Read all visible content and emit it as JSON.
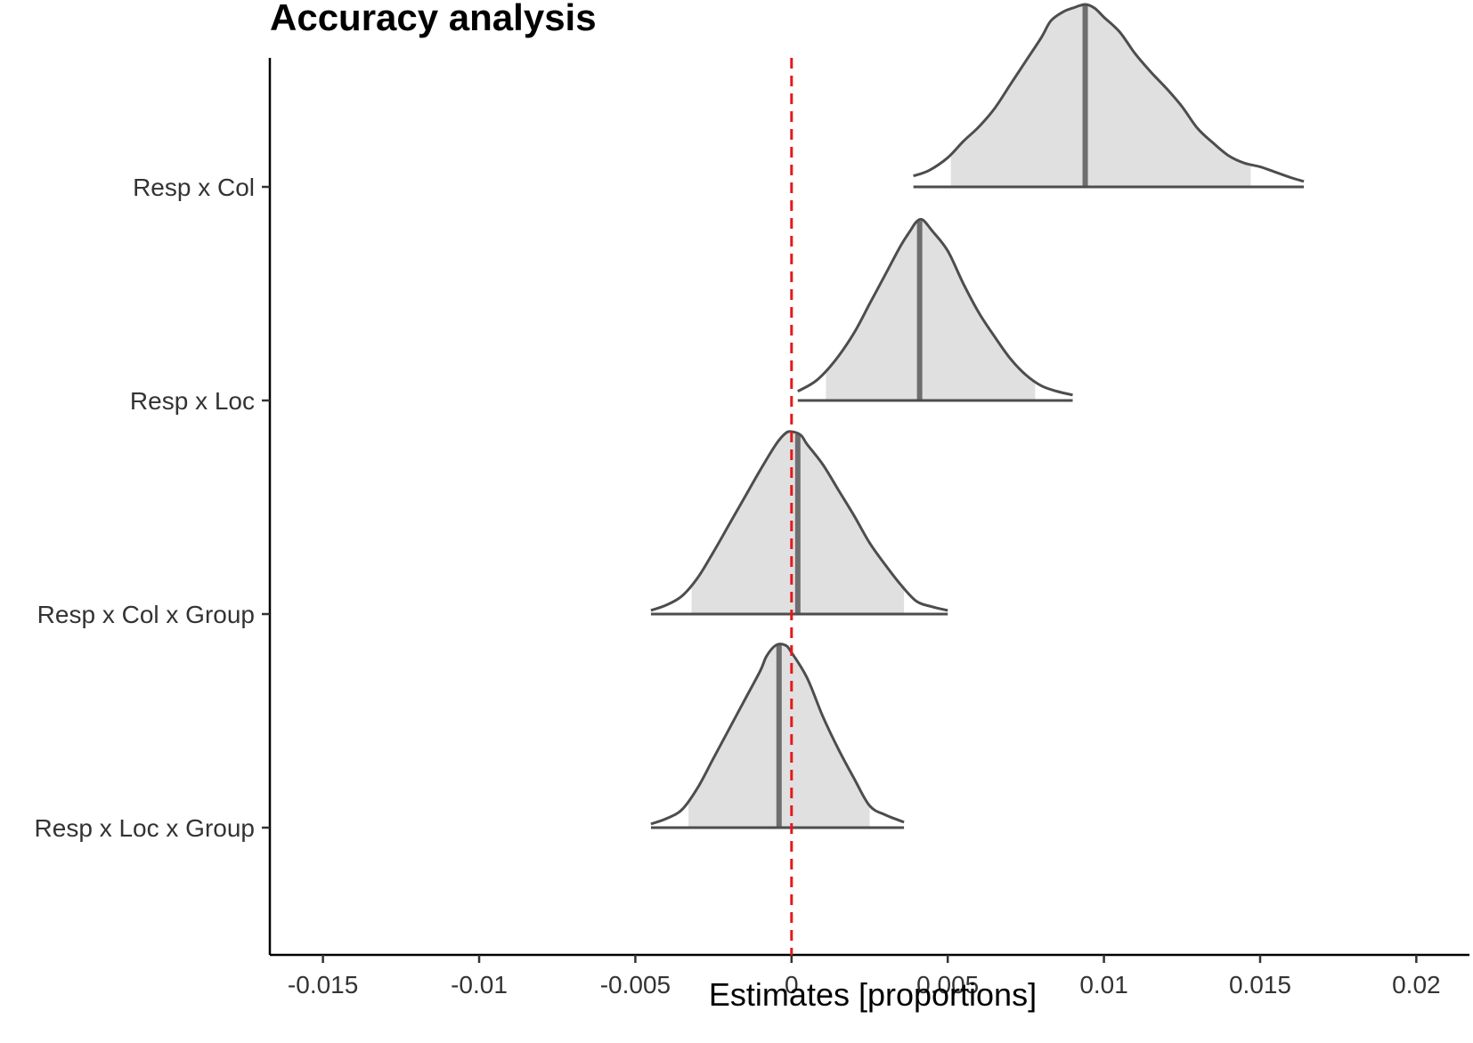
{
  "chart_data": {
    "type": "area",
    "subtype": "posterior density ridges with median line, 95% interval shading and zero reference line",
    "title": "Accuracy analysis",
    "xlabel": "Estimates [proportions]",
    "ylabel": "",
    "xlim": [
      -0.0167,
      0.0217
    ],
    "x_ticks": [
      -0.015,
      -0.01,
      -0.005,
      0,
      0.005,
      0.01,
      0.015,
      0.02
    ],
    "x_tick_labels": [
      "-0.015",
      "-0.01",
      "-0.005",
      "0",
      "0.005",
      "0.01",
      "0.015",
      "0.02"
    ],
    "reference_line": {
      "x": 0,
      "style": "dashed",
      "color": "#e31a1c"
    },
    "colors": {
      "fill": "#e0e0e0",
      "outline": "#4d4d4d",
      "median": "#6e6e6e",
      "reference": "#e31a1c"
    },
    "grid": false,
    "legend": "none",
    "series": [
      {
        "name": "Resp x Col",
        "x_min": 0.0039,
        "x_max": 0.0164,
        "interval_low": 0.0051,
        "interval_high": 0.0147,
        "median": 0.0094,
        "density": [
          [
            0.0039,
            0.06
          ],
          [
            0.0044,
            0.09
          ],
          [
            0.005,
            0.16
          ],
          [
            0.0055,
            0.25
          ],
          [
            0.006,
            0.33
          ],
          [
            0.0065,
            0.43
          ],
          [
            0.007,
            0.56
          ],
          [
            0.0075,
            0.69
          ],
          [
            0.008,
            0.82
          ],
          [
            0.0083,
            0.91
          ],
          [
            0.0087,
            0.96
          ],
          [
            0.009,
            0.98
          ],
          [
            0.0094,
            1.0
          ],
          [
            0.0097,
            0.98
          ],
          [
            0.01,
            0.93
          ],
          [
            0.0105,
            0.85
          ],
          [
            0.011,
            0.73
          ],
          [
            0.0115,
            0.63
          ],
          [
            0.012,
            0.54
          ],
          [
            0.0125,
            0.44
          ],
          [
            0.013,
            0.32
          ],
          [
            0.0135,
            0.24
          ],
          [
            0.014,
            0.17
          ],
          [
            0.0145,
            0.13
          ],
          [
            0.015,
            0.11
          ],
          [
            0.0155,
            0.08
          ],
          [
            0.016,
            0.05
          ],
          [
            0.0164,
            0.03
          ]
        ]
      },
      {
        "name": "Resp x Loc",
        "x_min": 0.0002,
        "x_max": 0.009,
        "interval_low": 0.0011,
        "interval_high": 0.0078,
        "median": 0.0041,
        "density": [
          [
            0.0002,
            0.05
          ],
          [
            0.0008,
            0.11
          ],
          [
            0.0014,
            0.22
          ],
          [
            0.002,
            0.37
          ],
          [
            0.0025,
            0.53
          ],
          [
            0.003,
            0.69
          ],
          [
            0.0035,
            0.85
          ],
          [
            0.0038,
            0.93
          ],
          [
            0.004,
            0.98
          ],
          [
            0.0042,
            0.99
          ],
          [
            0.0045,
            0.93
          ],
          [
            0.005,
            0.82
          ],
          [
            0.0055,
            0.64
          ],
          [
            0.006,
            0.48
          ],
          [
            0.0065,
            0.35
          ],
          [
            0.007,
            0.23
          ],
          [
            0.0075,
            0.14
          ],
          [
            0.008,
            0.08
          ],
          [
            0.0085,
            0.05
          ],
          [
            0.009,
            0.03
          ]
        ]
      },
      {
        "name": "Resp x Col x Group",
        "x_min": -0.0045,
        "x_max": 0.005,
        "interval_low": -0.0032,
        "interval_high": 0.0036,
        "median": 0.0002,
        "density": [
          [
            -0.0045,
            0.02
          ],
          [
            -0.004,
            0.05
          ],
          [
            -0.0035,
            0.1
          ],
          [
            -0.003,
            0.2
          ],
          [
            -0.0025,
            0.34
          ],
          [
            -0.002,
            0.49
          ],
          [
            -0.0015,
            0.64
          ],
          [
            -0.001,
            0.79
          ],
          [
            -0.0005,
            0.93
          ],
          [
            -0.0002,
            0.99
          ],
          [
            0.0,
            1.0
          ],
          [
            0.0003,
            0.98
          ],
          [
            0.0005,
            0.93
          ],
          [
            0.001,
            0.82
          ],
          [
            0.0015,
            0.68
          ],
          [
            0.002,
            0.54
          ],
          [
            0.0025,
            0.39
          ],
          [
            0.003,
            0.27
          ],
          [
            0.0035,
            0.16
          ],
          [
            0.004,
            0.07
          ],
          [
            0.0045,
            0.04
          ],
          [
            0.005,
            0.02
          ]
        ]
      },
      {
        "name": "Resp x Loc x Group",
        "x_min": -0.0045,
        "x_max": 0.0036,
        "interval_low": -0.0033,
        "interval_high": 0.0025,
        "median": -0.0004,
        "density": [
          [
            -0.0045,
            0.02
          ],
          [
            -0.004,
            0.05
          ],
          [
            -0.0035,
            0.1
          ],
          [
            -0.003,
            0.22
          ],
          [
            -0.0025,
            0.38
          ],
          [
            -0.002,
            0.54
          ],
          [
            -0.0015,
            0.7
          ],
          [
            -0.001,
            0.86
          ],
          [
            -0.0008,
            0.94
          ],
          [
            -0.0005,
            1.0
          ],
          [
            -0.0002,
            1.0
          ],
          [
            0.0,
            0.96
          ],
          [
            0.0005,
            0.82
          ],
          [
            0.001,
            0.61
          ],
          [
            0.0015,
            0.43
          ],
          [
            0.002,
            0.27
          ],
          [
            0.0025,
            0.12
          ],
          [
            0.003,
            0.07
          ],
          [
            0.0036,
            0.03
          ]
        ]
      }
    ]
  }
}
